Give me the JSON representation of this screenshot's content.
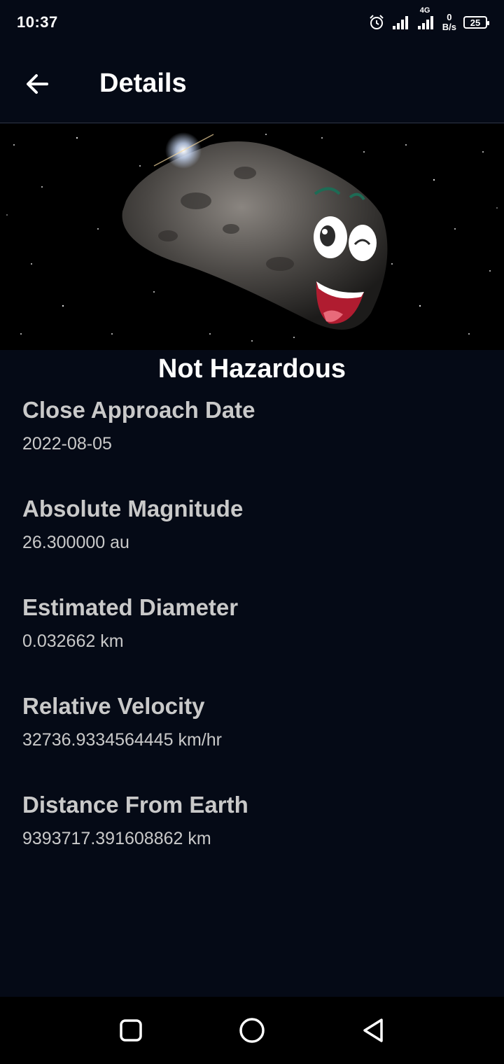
{
  "status_bar": {
    "time": "10:37",
    "network_type": "4G",
    "net_speed_value": "0",
    "net_speed_unit": "B/s",
    "battery_level": "25",
    "icons": [
      "alarm-icon",
      "signal-icon",
      "signal-4g-icon",
      "battery-icon"
    ]
  },
  "app_bar": {
    "title": "Details",
    "back_icon": "arrow-left-icon"
  },
  "hero": {
    "image": "asteroid-cartoon-image"
  },
  "hazard_status": "Not Hazardous",
  "details": [
    {
      "label": "Close Approach Date",
      "value": "2022-08-05"
    },
    {
      "label": "Absolute Magnitude",
      "value": "26.300000 au"
    },
    {
      "label": "Estimated Diameter",
      "value": "0.032662 km"
    },
    {
      "label": "Relative Velocity",
      "value": "32736.9334564445 km/hr"
    },
    {
      "label": "Distance From Earth",
      "value": "9393717.391608862 km"
    }
  ],
  "nav_bar": {
    "icons": [
      "recents-square-icon",
      "home-circle-icon",
      "back-triangle-icon"
    ]
  },
  "colors": {
    "background": "#050a16",
    "label_text": "#c9c9c9",
    "nav_background": "#000000"
  }
}
